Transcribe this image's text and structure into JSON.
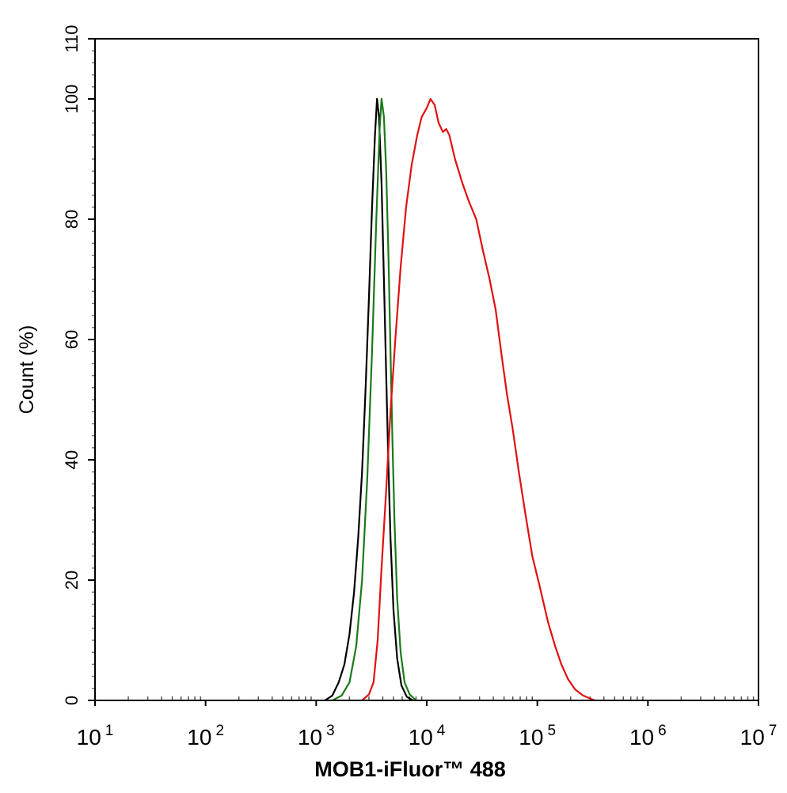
{
  "chart_data": {
    "type": "line",
    "title": "",
    "xlabel": "MOB1-iFluor™ 488",
    "ylabel": "Count  (%)",
    "x_scale": "log",
    "xlim": [
      10,
      10000000
    ],
    "ylim": [
      0,
      110
    ],
    "x_ticks": [
      {
        "value": 10,
        "base": "10",
        "exp": "1"
      },
      {
        "value": 100,
        "base": "10",
        "exp": "2"
      },
      {
        "value": 1000,
        "base": "10",
        "exp": "3"
      },
      {
        "value": 10000,
        "base": "10",
        "exp": "4"
      },
      {
        "value": 100000,
        "base": "10",
        "exp": "5"
      },
      {
        "value": 1000000,
        "base": "10",
        "exp": "6"
      },
      {
        "value": 10000000,
        "base": "10",
        "exp": "7"
      }
    ],
    "y_ticks": [
      0,
      20,
      40,
      60,
      80,
      100,
      110
    ],
    "grid": false,
    "legend": "none",
    "series": [
      {
        "color": "#000000",
        "points": [
          [
            1200,
            0
          ],
          [
            1400,
            0.8
          ],
          [
            1600,
            3
          ],
          [
            1800,
            6
          ],
          [
            2000,
            11
          ],
          [
            2200,
            18
          ],
          [
            2400,
            27
          ],
          [
            2600,
            38
          ],
          [
            2800,
            52
          ],
          [
            3000,
            67
          ],
          [
            3200,
            82
          ],
          [
            3400,
            94
          ],
          [
            3550,
            100
          ],
          [
            3700,
            97
          ],
          [
            3900,
            86
          ],
          [
            4100,
            70
          ],
          [
            4300,
            54
          ],
          [
            4500,
            39
          ],
          [
            4700,
            27
          ],
          [
            5000,
            15
          ],
          [
            5400,
            7
          ],
          [
            5900,
            2.5
          ],
          [
            6600,
            0.6
          ],
          [
            7500,
            0
          ]
        ]
      },
      {
        "color": "#1a7a1a",
        "points": [
          [
            1400,
            0
          ],
          [
            1700,
            0.8
          ],
          [
            2000,
            3
          ],
          [
            2300,
            9
          ],
          [
            2600,
            20
          ],
          [
            2900,
            37
          ],
          [
            3200,
            58
          ],
          [
            3500,
            80
          ],
          [
            3750,
            95
          ],
          [
            3900,
            100
          ],
          [
            4100,
            97
          ],
          [
            4300,
            88
          ],
          [
            4500,
            74
          ],
          [
            4700,
            58
          ],
          [
            4900,
            43
          ],
          [
            5100,
            30
          ],
          [
            5400,
            17
          ],
          [
            5800,
            8
          ],
          [
            6300,
            3
          ],
          [
            7000,
            1
          ],
          [
            8000,
            0
          ]
        ]
      },
      {
        "color": "#e01010",
        "points": [
          [
            2600,
            0
          ],
          [
            3000,
            1
          ],
          [
            3300,
            3
          ],
          [
            3600,
            10
          ],
          [
            3900,
            22
          ],
          [
            4300,
            35
          ],
          [
            4700,
            48
          ],
          [
            5200,
            60
          ],
          [
            5800,
            72
          ],
          [
            6500,
            82
          ],
          [
            7300,
            89
          ],
          [
            8200,
            94
          ],
          [
            9000,
            97
          ],
          [
            10000,
            98.5
          ],
          [
            10800,
            100
          ],
          [
            11800,
            99
          ],
          [
            12800,
            96
          ],
          [
            14000,
            94.5
          ],
          [
            15000,
            95
          ],
          [
            16000,
            94
          ],
          [
            18000,
            90
          ],
          [
            21000,
            86
          ],
          [
            24000,
            83
          ],
          [
            28000,
            80
          ],
          [
            32000,
            75
          ],
          [
            37000,
            70
          ],
          [
            42000,
            65
          ],
          [
            47000,
            58
          ],
          [
            53000,
            51
          ],
          [
            60000,
            45
          ],
          [
            68000,
            38
          ],
          [
            78000,
            31
          ],
          [
            90000,
            24
          ],
          [
            105000,
            19
          ],
          [
            125000,
            13
          ],
          [
            145000,
            9
          ],
          [
            165000,
            6
          ],
          [
            190000,
            3.5
          ],
          [
            220000,
            1.8
          ],
          [
            260000,
            0.8
          ],
          [
            330000,
            0
          ]
        ]
      }
    ]
  }
}
